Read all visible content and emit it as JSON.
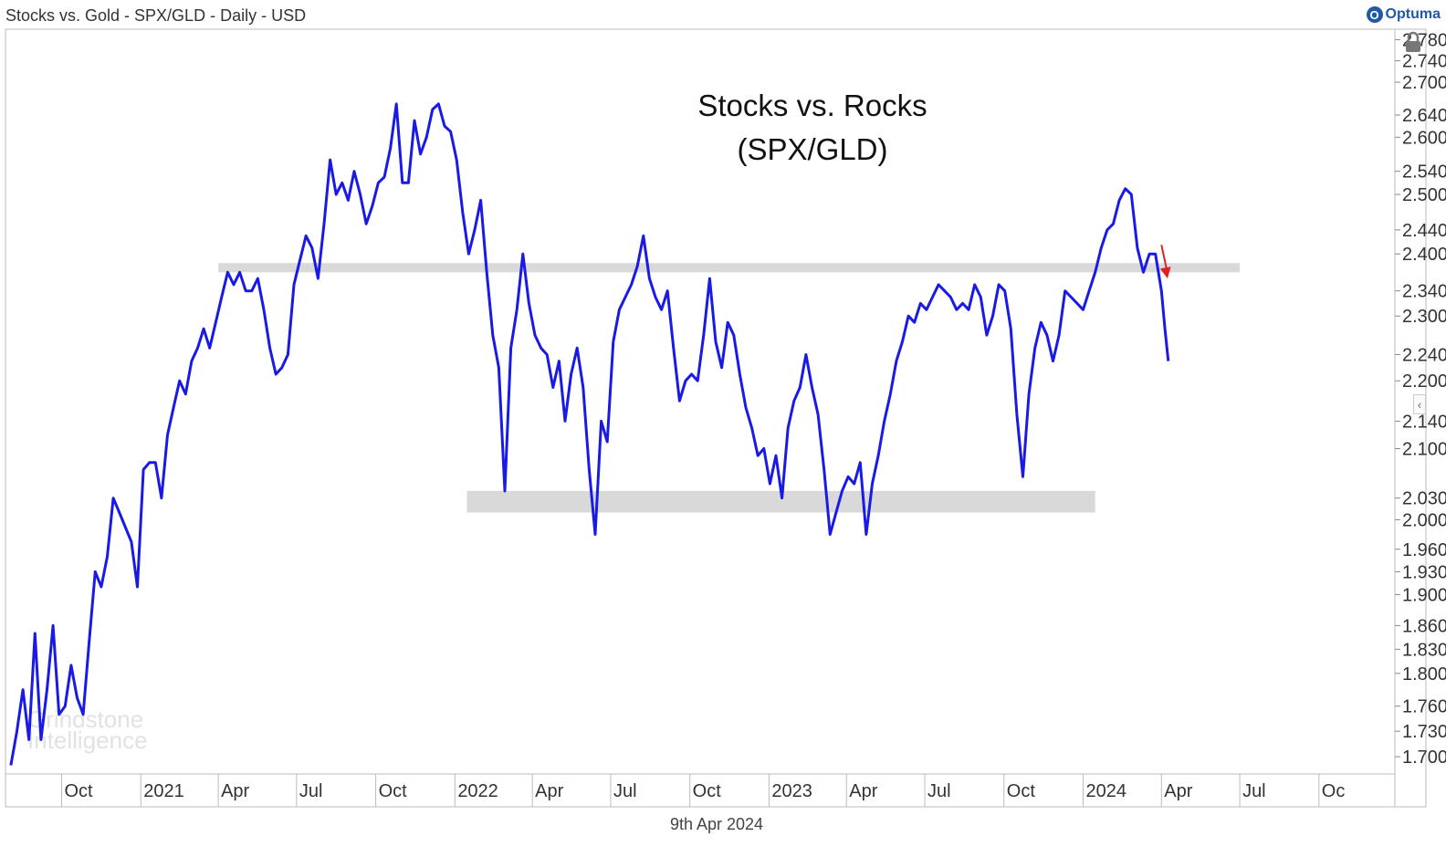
{
  "header": {
    "title": "Stocks vs. Gold - SPX/GLD - Daily - USD",
    "brand": "Optuma",
    "brand_icon": "optuma-logo-icon"
  },
  "footer": {
    "date": "9th Apr 2024"
  },
  "watermark": {
    "line1": "Grindstone",
    "line2": "Intelligence"
  },
  "colors": {
    "line": "#1a1ae6",
    "band": "#d9d9d9",
    "arrow": "#e02020",
    "axis": "#999999",
    "text": "#333333"
  },
  "icons": {
    "lock": "lock-icon",
    "collapse": "chevron-left-icon"
  },
  "chart_data": {
    "type": "line",
    "title": "Stocks vs. Rocks",
    "subtitle": "(SPX/GLD)",
    "y_scale": "log",
    "x_range": [
      "2020-08-01",
      "2024-10-15"
    ],
    "y_range": [
      1.68,
      2.8
    ],
    "y_ticks": [
      "2.780",
      "2.740",
      "2.700",
      "2.640",
      "2.600",
      "2.540",
      "2.500",
      "2.440",
      "2.400",
      "2.340",
      "2.300",
      "2.240",
      "2.200",
      "2.140",
      "2.100",
      "2.030",
      "2.000",
      "1.960",
      "1.930",
      "1.900",
      "1.860",
      "1.830",
      "1.800",
      "1.760",
      "1.730",
      "1.700"
    ],
    "x_ticks": [
      {
        "label": "Oct",
        "date": "2020-10-01"
      },
      {
        "label": "2021",
        "date": "2021-01-01"
      },
      {
        "label": "Apr",
        "date": "2021-04-01"
      },
      {
        "label": "Jul",
        "date": "2021-07-01"
      },
      {
        "label": "Oct",
        "date": "2021-10-01"
      },
      {
        "label": "2022",
        "date": "2022-01-01"
      },
      {
        "label": "Apr",
        "date": "2022-04-01"
      },
      {
        "label": "Jul",
        "date": "2022-07-01"
      },
      {
        "label": "Oct",
        "date": "2022-10-01"
      },
      {
        "label": "2023",
        "date": "2023-01-01"
      },
      {
        "label": "Apr",
        "date": "2023-04-01"
      },
      {
        "label": "Jul",
        "date": "2023-07-01"
      },
      {
        "label": "Oct",
        "date": "2023-10-01"
      },
      {
        "label": "2024",
        "date": "2024-01-01"
      },
      {
        "label": "Apr",
        "date": "2024-04-01"
      },
      {
        "label": "Jul",
        "date": "2024-07-01"
      },
      {
        "label": "Oc",
        "date": "2024-10-01"
      }
    ],
    "bands": [
      {
        "name": "resistance-band",
        "from": "2021-04-01",
        "to": "2024-07-01",
        "low": 2.37,
        "high": 2.385
      },
      {
        "name": "support-band",
        "from": "2022-01-15",
        "to": "2024-01-15",
        "low": 2.01,
        "high": 2.04
      }
    ],
    "arrow": {
      "from_date": "2024-04-01",
      "from_value": 2.415,
      "to_date": "2024-04-08",
      "to_value": 2.36
    },
    "series": [
      {
        "values": [
          [
            "2020-08-03",
            1.69
          ],
          [
            "2020-08-10",
            1.73
          ],
          [
            "2020-08-17",
            1.78
          ],
          [
            "2020-08-24",
            1.72
          ],
          [
            "2020-08-31",
            1.85
          ],
          [
            "2020-09-07",
            1.72
          ],
          [
            "2020-09-14",
            1.78
          ],
          [
            "2020-09-21",
            1.86
          ],
          [
            "2020-09-28",
            1.75
          ],
          [
            "2020-10-05",
            1.76
          ],
          [
            "2020-10-12",
            1.81
          ],
          [
            "2020-10-19",
            1.77
          ],
          [
            "2020-10-26",
            1.75
          ],
          [
            "2020-11-02",
            1.84
          ],
          [
            "2020-11-09",
            1.93
          ],
          [
            "2020-11-16",
            1.91
          ],
          [
            "2020-11-23",
            1.95
          ],
          [
            "2020-11-30",
            2.03
          ],
          [
            "2020-12-07",
            2.01
          ],
          [
            "2020-12-14",
            1.99
          ],
          [
            "2020-12-21",
            1.97
          ],
          [
            "2020-12-28",
            1.91
          ],
          [
            "2021-01-04",
            2.07
          ],
          [
            "2021-01-11",
            2.08
          ],
          [
            "2021-01-18",
            2.08
          ],
          [
            "2021-01-25",
            2.03
          ],
          [
            "2021-02-01",
            2.12
          ],
          [
            "2021-02-08",
            2.16
          ],
          [
            "2021-02-15",
            2.2
          ],
          [
            "2021-02-22",
            2.18
          ],
          [
            "2021-03-01",
            2.23
          ],
          [
            "2021-03-08",
            2.25
          ],
          [
            "2021-03-15",
            2.28
          ],
          [
            "2021-03-22",
            2.25
          ],
          [
            "2021-03-29",
            2.29
          ],
          [
            "2021-04-05",
            2.33
          ],
          [
            "2021-04-12",
            2.37
          ],
          [
            "2021-04-19",
            2.35
          ],
          [
            "2021-04-26",
            2.37
          ],
          [
            "2021-05-03",
            2.34
          ],
          [
            "2021-05-10",
            2.34
          ],
          [
            "2021-05-17",
            2.36
          ],
          [
            "2021-05-24",
            2.31
          ],
          [
            "2021-05-31",
            2.25
          ],
          [
            "2021-06-07",
            2.21
          ],
          [
            "2021-06-14",
            2.22
          ],
          [
            "2021-06-21",
            2.24
          ],
          [
            "2021-06-28",
            2.35
          ],
          [
            "2021-07-05",
            2.39
          ],
          [
            "2021-07-12",
            2.43
          ],
          [
            "2021-07-19",
            2.41
          ],
          [
            "2021-07-26",
            2.36
          ],
          [
            "2021-08-02",
            2.45
          ],
          [
            "2021-08-09",
            2.56
          ],
          [
            "2021-08-16",
            2.5
          ],
          [
            "2021-08-23",
            2.52
          ],
          [
            "2021-08-30",
            2.49
          ],
          [
            "2021-09-06",
            2.54
          ],
          [
            "2021-09-13",
            2.5
          ],
          [
            "2021-09-20",
            2.45
          ],
          [
            "2021-09-27",
            2.48
          ],
          [
            "2021-10-04",
            2.52
          ],
          [
            "2021-10-11",
            2.53
          ],
          [
            "2021-10-18",
            2.58
          ],
          [
            "2021-10-25",
            2.66
          ],
          [
            "2021-11-01",
            2.52
          ],
          [
            "2021-11-08",
            2.52
          ],
          [
            "2021-11-15",
            2.63
          ],
          [
            "2021-11-22",
            2.57
          ],
          [
            "2021-11-29",
            2.6
          ],
          [
            "2021-12-06",
            2.65
          ],
          [
            "2021-12-13",
            2.66
          ],
          [
            "2021-12-20",
            2.62
          ],
          [
            "2021-12-27",
            2.61
          ],
          [
            "2022-01-03",
            2.56
          ],
          [
            "2022-01-10",
            2.47
          ],
          [
            "2022-01-17",
            2.4
          ],
          [
            "2022-01-24",
            2.44
          ],
          [
            "2022-01-31",
            2.49
          ],
          [
            "2022-02-07",
            2.37
          ],
          [
            "2022-02-14",
            2.27
          ],
          [
            "2022-02-21",
            2.22
          ],
          [
            "2022-02-28",
            2.04
          ],
          [
            "2022-03-07",
            2.25
          ],
          [
            "2022-03-14",
            2.31
          ],
          [
            "2022-03-21",
            2.4
          ],
          [
            "2022-03-28",
            2.32
          ],
          [
            "2022-04-04",
            2.27
          ],
          [
            "2022-04-11",
            2.25
          ],
          [
            "2022-04-18",
            2.24
          ],
          [
            "2022-04-25",
            2.19
          ],
          [
            "2022-05-02",
            2.23
          ],
          [
            "2022-05-09",
            2.14
          ],
          [
            "2022-05-16",
            2.21
          ],
          [
            "2022-05-23",
            2.25
          ],
          [
            "2022-05-30",
            2.19
          ],
          [
            "2022-06-06",
            2.07
          ],
          [
            "2022-06-13",
            1.98
          ],
          [
            "2022-06-20",
            2.14
          ],
          [
            "2022-06-27",
            2.11
          ],
          [
            "2022-07-04",
            2.26
          ],
          [
            "2022-07-11",
            2.31
          ],
          [
            "2022-07-18",
            2.33
          ],
          [
            "2022-07-25",
            2.35
          ],
          [
            "2022-08-01",
            2.38
          ],
          [
            "2022-08-08",
            2.43
          ],
          [
            "2022-08-15",
            2.36
          ],
          [
            "2022-08-22",
            2.33
          ],
          [
            "2022-08-29",
            2.31
          ],
          [
            "2022-09-05",
            2.34
          ],
          [
            "2022-09-12",
            2.25
          ],
          [
            "2022-09-19",
            2.17
          ],
          [
            "2022-09-26",
            2.2
          ],
          [
            "2022-10-03",
            2.21
          ],
          [
            "2022-10-10",
            2.2
          ],
          [
            "2022-10-17",
            2.27
          ],
          [
            "2022-10-24",
            2.36
          ],
          [
            "2022-10-31",
            2.26
          ],
          [
            "2022-11-07",
            2.22
          ],
          [
            "2022-11-14",
            2.29
          ],
          [
            "2022-11-21",
            2.27
          ],
          [
            "2022-11-28",
            2.21
          ],
          [
            "2022-12-05",
            2.16
          ],
          [
            "2022-12-12",
            2.13
          ],
          [
            "2022-12-19",
            2.09
          ],
          [
            "2022-12-26",
            2.1
          ],
          [
            "2023-01-02",
            2.05
          ],
          [
            "2023-01-09",
            2.09
          ],
          [
            "2023-01-16",
            2.03
          ],
          [
            "2023-01-23",
            2.13
          ],
          [
            "2023-01-30",
            2.17
          ],
          [
            "2023-02-06",
            2.19
          ],
          [
            "2023-02-13",
            2.24
          ],
          [
            "2023-02-20",
            2.19
          ],
          [
            "2023-02-27",
            2.15
          ],
          [
            "2023-03-06",
            2.07
          ],
          [
            "2023-03-13",
            1.98
          ],
          [
            "2023-03-20",
            2.01
          ],
          [
            "2023-03-27",
            2.04
          ],
          [
            "2023-04-03",
            2.06
          ],
          [
            "2023-04-10",
            2.05
          ],
          [
            "2023-04-17",
            2.08
          ],
          [
            "2023-04-24",
            1.98
          ],
          [
            "2023-05-01",
            2.05
          ],
          [
            "2023-05-08",
            2.09
          ],
          [
            "2023-05-15",
            2.14
          ],
          [
            "2023-05-22",
            2.18
          ],
          [
            "2023-05-29",
            2.23
          ],
          [
            "2023-06-05",
            2.26
          ],
          [
            "2023-06-12",
            2.3
          ],
          [
            "2023-06-19",
            2.29
          ],
          [
            "2023-06-26",
            2.32
          ],
          [
            "2023-07-03",
            2.31
          ],
          [
            "2023-07-10",
            2.33
          ],
          [
            "2023-07-17",
            2.35
          ],
          [
            "2023-07-24",
            2.34
          ],
          [
            "2023-07-31",
            2.33
          ],
          [
            "2023-08-07",
            2.31
          ],
          [
            "2023-08-14",
            2.32
          ],
          [
            "2023-08-21",
            2.31
          ],
          [
            "2023-08-28",
            2.35
          ],
          [
            "2023-09-04",
            2.33
          ],
          [
            "2023-09-11",
            2.27
          ],
          [
            "2023-09-18",
            2.3
          ],
          [
            "2023-09-25",
            2.35
          ],
          [
            "2023-10-02",
            2.34
          ],
          [
            "2023-10-09",
            2.28
          ],
          [
            "2023-10-16",
            2.15
          ],
          [
            "2023-10-23",
            2.06
          ],
          [
            "2023-10-30",
            2.18
          ],
          [
            "2023-11-06",
            2.25
          ],
          [
            "2023-11-13",
            2.29
          ],
          [
            "2023-11-20",
            2.27
          ],
          [
            "2023-11-27",
            2.23
          ],
          [
            "2023-12-04",
            2.27
          ],
          [
            "2023-12-11",
            2.34
          ],
          [
            "2023-12-18",
            2.33
          ],
          [
            "2023-12-25",
            2.32
          ],
          [
            "2024-01-01",
            2.31
          ],
          [
            "2024-01-08",
            2.34
          ],
          [
            "2024-01-15",
            2.37
          ],
          [
            "2024-01-22",
            2.41
          ],
          [
            "2024-01-29",
            2.44
          ],
          [
            "2024-02-05",
            2.45
          ],
          [
            "2024-02-12",
            2.49
          ],
          [
            "2024-02-19",
            2.51
          ],
          [
            "2024-02-26",
            2.5
          ],
          [
            "2024-03-04",
            2.41
          ],
          [
            "2024-03-11",
            2.37
          ],
          [
            "2024-03-18",
            2.4
          ],
          [
            "2024-03-25",
            2.4
          ],
          [
            "2024-04-01",
            2.34
          ],
          [
            "2024-04-05",
            2.28
          ],
          [
            "2024-04-09",
            2.23
          ]
        ]
      }
    ]
  }
}
